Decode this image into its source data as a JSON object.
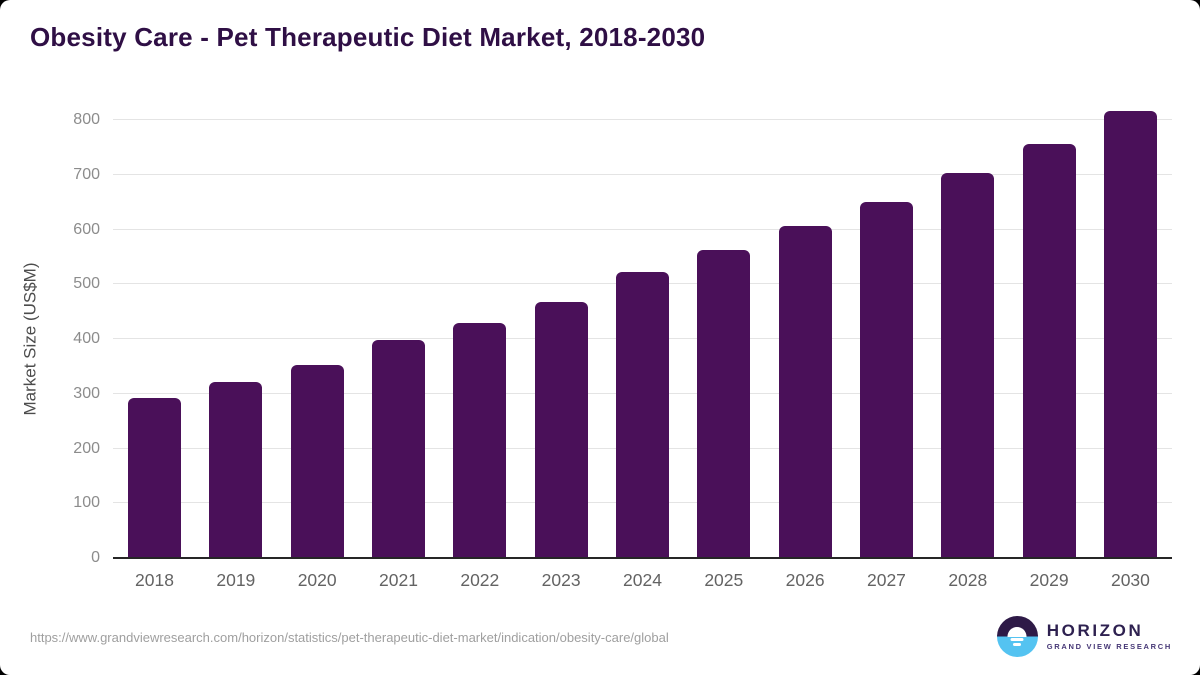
{
  "page": {
    "title": "Obesity Care - Pet Therapeutic Diet Market, 2018-2030",
    "source_url": "https://www.grandviewresearch.com/horizon/statistics/pet-therapeutic-diet-market/indication/obesity-care/global"
  },
  "logo": {
    "name": "HORIZON",
    "subtitle": "GRAND VIEW RESEARCH"
  },
  "colors": {
    "bar": "#4a1059",
    "title": "#2f0f45",
    "gridline": "#e4e4e4",
    "axis_line": "#262626",
    "y_tick_text": "#8c8c8c",
    "x_tick_text": "#636363",
    "source_text": "#9f9f9f",
    "logo_dark_purple": "#2e1a47",
    "logo_light_blue": "#54c3f1"
  },
  "chart_data": {
    "type": "bar",
    "title": "Obesity Care - Pet Therapeutic Diet Market, 2018-2030",
    "categories": [
      "2018",
      "2019",
      "2020",
      "2021",
      "2022",
      "2023",
      "2024",
      "2025",
      "2026",
      "2027",
      "2028",
      "2029",
      "2030"
    ],
    "values": [
      292,
      322,
      352,
      398,
      430,
      467,
      522,
      562,
      606,
      651,
      703,
      757,
      816
    ],
    "xlabel": "",
    "ylabel": "Market Size (US$M)",
    "ylim": [
      0,
      800
    ],
    "ytick_step": 100,
    "yticks": [
      0,
      100,
      200,
      300,
      400,
      500,
      600,
      700,
      800
    ],
    "grid": true,
    "legend": "none",
    "bar_color": "#4a1059"
  }
}
